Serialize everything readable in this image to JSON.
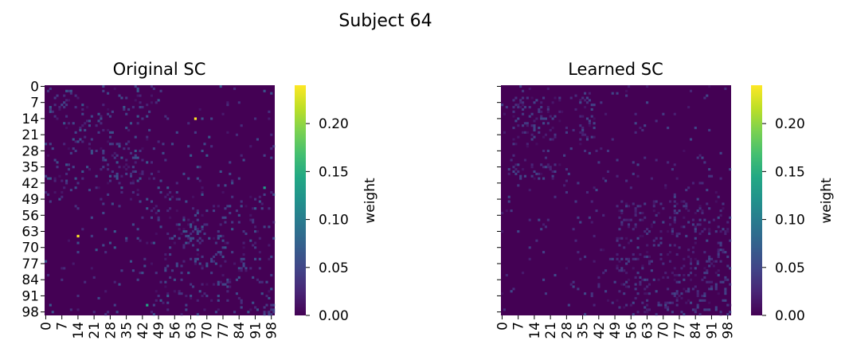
{
  "suptitle": "Subject 64",
  "chart_data": [
    {
      "type": "heatmap",
      "title": "Original SC",
      "n": 100,
      "tick_labels": [
        "0",
        "7",
        "14",
        "21",
        "28",
        "35",
        "42",
        "49",
        "56",
        "63",
        "70",
        "77",
        "84",
        "91",
        "98"
      ],
      "tick_indices": [
        0,
        7,
        14,
        21,
        28,
        35,
        42,
        49,
        56,
        63,
        70,
        77,
        84,
        91,
        98
      ],
      "show_y_tick_labels": true,
      "colorbar": {
        "label": "weight",
        "ticks": [
          "0.00",
          "0.05",
          "0.10",
          "0.15",
          "0.20"
        ],
        "tick_values": [
          0,
          0.05,
          0.1,
          0.15,
          0.2
        ],
        "vmin": 0,
        "vmax": 0.24,
        "colormap": "viridis"
      },
      "background_value": 0.0,
      "notable_cells": [
        {
          "row": 14,
          "col": 65,
          "value": 0.24
        },
        {
          "row": 65,
          "col": 14,
          "value": 0.24
        },
        {
          "row": 95,
          "col": 44,
          "value": 0.14
        },
        {
          "row": 44,
          "col": 95,
          "value": 0.13
        }
      ],
      "structure": "sparse symmetric with weak diagonal band, ring near (52,52) and (36,36)"
    },
    {
      "type": "heatmap",
      "title": "Learned SC",
      "n": 100,
      "tick_labels": [
        "0",
        "7",
        "14",
        "21",
        "28",
        "35",
        "42",
        "49",
        "56",
        "63",
        "70",
        "77",
        "84",
        "91",
        "98"
      ],
      "tick_indices": [
        0,
        7,
        14,
        21,
        28,
        35,
        42,
        49,
        56,
        63,
        70,
        77,
        84,
        91,
        98
      ],
      "show_y_tick_labels": false,
      "colorbar": {
        "label": "weight",
        "ticks": [
          "0.00",
          "0.05",
          "0.10",
          "0.15",
          "0.20"
        ],
        "tick_values": [
          0,
          0.05,
          0.1,
          0.15,
          0.2
        ],
        "vmin": 0,
        "vmax": 0.24,
        "colormap": "viridis"
      },
      "background_value": 0.0,
      "notable_cells": [],
      "structure": "block structure: dense low-weight blocks at rows/cols 5-25 and 50-98"
    }
  ]
}
